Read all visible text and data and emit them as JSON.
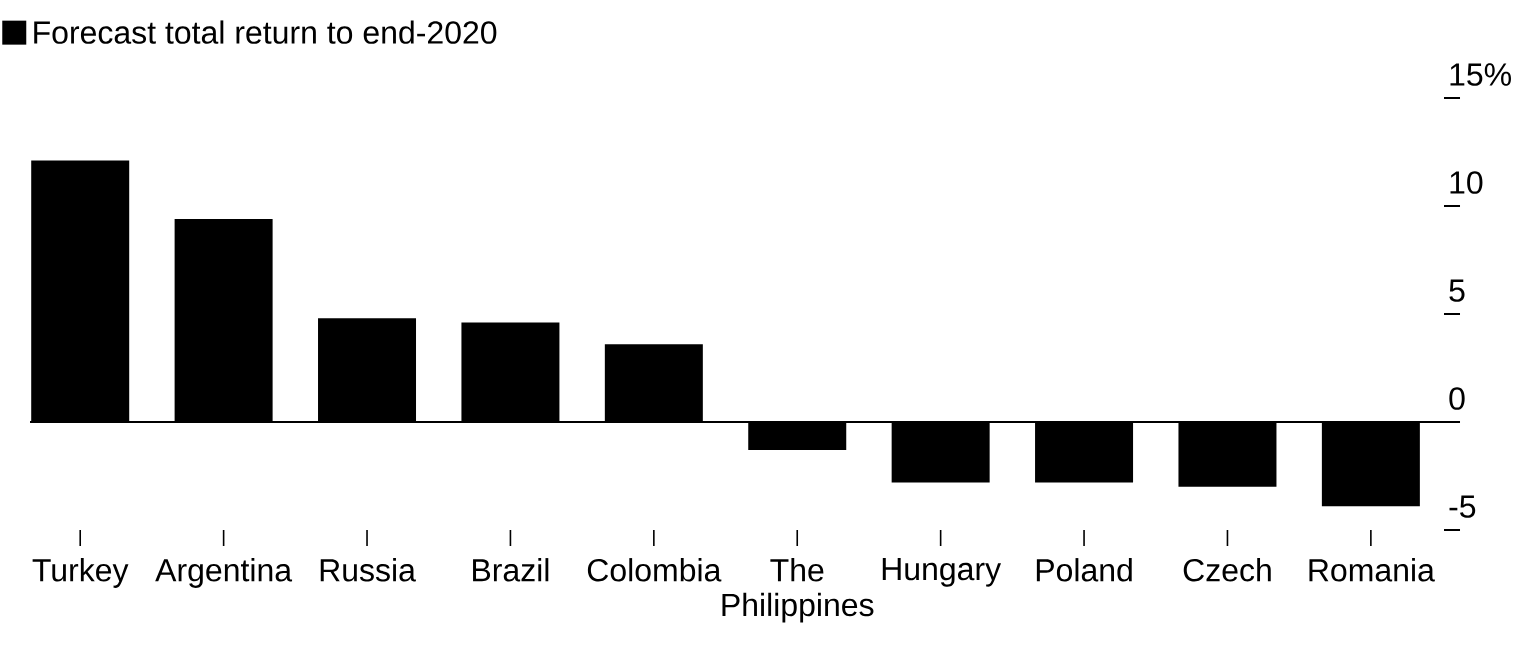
{
  "chart_data": {
    "type": "bar",
    "categories": [
      "Turkey",
      "Argentina",
      "Russia",
      "Brazil",
      "Colombia",
      "The Philippines",
      "Hungary",
      "Poland",
      "Czech",
      "Romania"
    ],
    "series": [
      {
        "name": "Forecast total return to end-2020",
        "color": "#000000",
        "values": [
          12.1,
          9.4,
          4.8,
          4.6,
          3.6,
          -1.3,
          -2.8,
          -2.8,
          -3.0,
          -3.9
        ]
      }
    ],
    "ylim": [
      -5,
      15
    ],
    "yticks": [
      -5,
      0,
      5,
      10,
      {
        "value": 15,
        "label": "15%"
      }
    ],
    "legend": "top left"
  }
}
